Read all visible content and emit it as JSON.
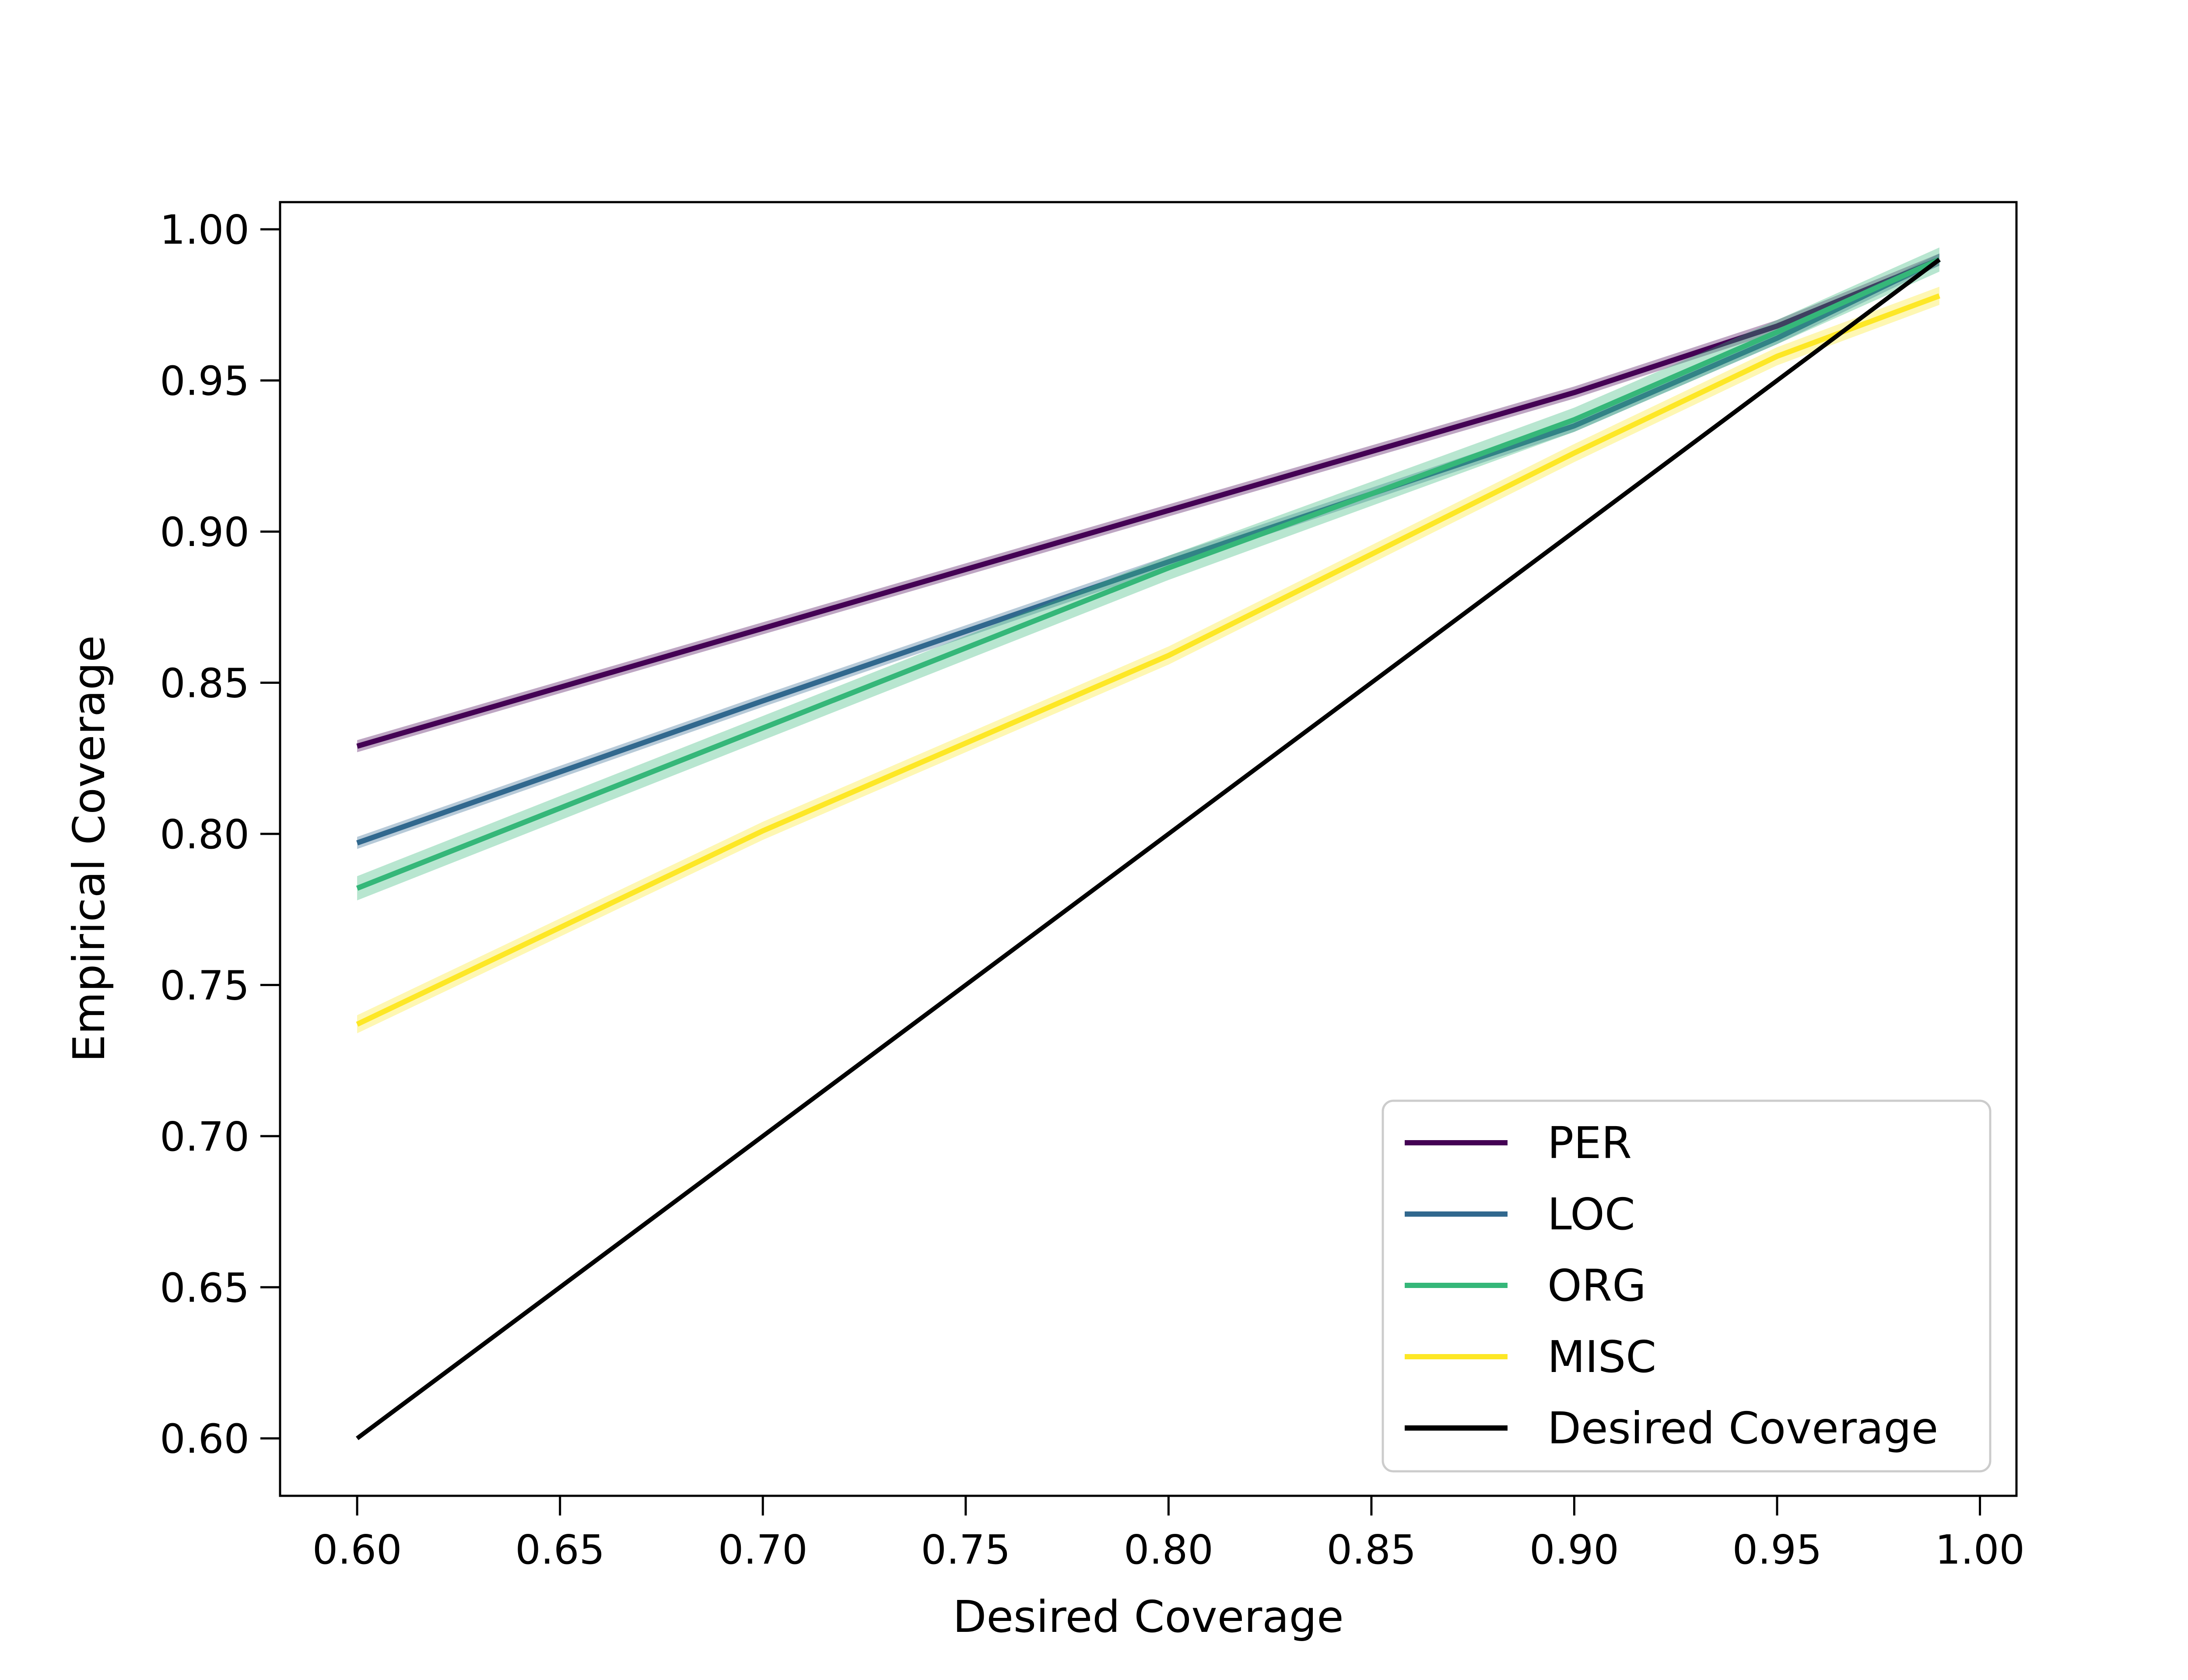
{
  "chart_data": {
    "type": "line",
    "title": "",
    "xlabel": "Desired Coverage",
    "ylabel": "Empirical Coverage",
    "xlim": [
      0.581,
      1.009
    ],
    "ylim": [
      0.581,
      1.009
    ],
    "xticks": [
      0.6,
      0.65,
      0.7,
      0.75,
      0.8,
      0.85,
      0.9,
      0.95,
      1.0
    ],
    "yticks": [
      0.6,
      0.65,
      0.7,
      0.75,
      0.8,
      0.85,
      0.9,
      0.95,
      1.0
    ],
    "xtick_labels": [
      "0.60",
      "0.65",
      "0.70",
      "0.75",
      "0.80",
      "0.85",
      "0.90",
      "0.95",
      "1.00"
    ],
    "ytick_labels": [
      "0.60",
      "0.65",
      "0.70",
      "0.75",
      "0.80",
      "0.85",
      "0.90",
      "0.95",
      "1.00"
    ],
    "grid": false,
    "legend_position": "bottom-right",
    "x": [
      0.6,
      0.7,
      0.8,
      0.9,
      0.95,
      0.99
    ],
    "series": [
      {
        "name": "PER",
        "color": "#440154",
        "band": 0.002,
        "values": [
          0.829,
          0.868,
          0.907,
          0.946,
          0.968,
          0.99
        ]
      },
      {
        "name": "LOC",
        "color": "#31688e",
        "band": 0.002,
        "values": [
          0.797,
          0.844,
          0.89,
          0.935,
          0.964,
          0.99
        ]
      },
      {
        "name": "ORG",
        "color": "#35b779",
        "band": 0.004,
        "values": [
          0.782,
          0.835,
          0.888,
          0.937,
          0.966,
          0.99
        ]
      },
      {
        "name": "MISC",
        "color": "#fde725",
        "band": 0.003,
        "values": [
          0.737,
          0.801,
          0.859,
          0.926,
          0.958,
          0.978
        ]
      },
      {
        "name": "Desired Coverage",
        "color": "#000000",
        "band": 0,
        "x": [
          0.6,
          0.99
        ],
        "values": [
          0.6,
          0.99
        ]
      }
    ]
  }
}
